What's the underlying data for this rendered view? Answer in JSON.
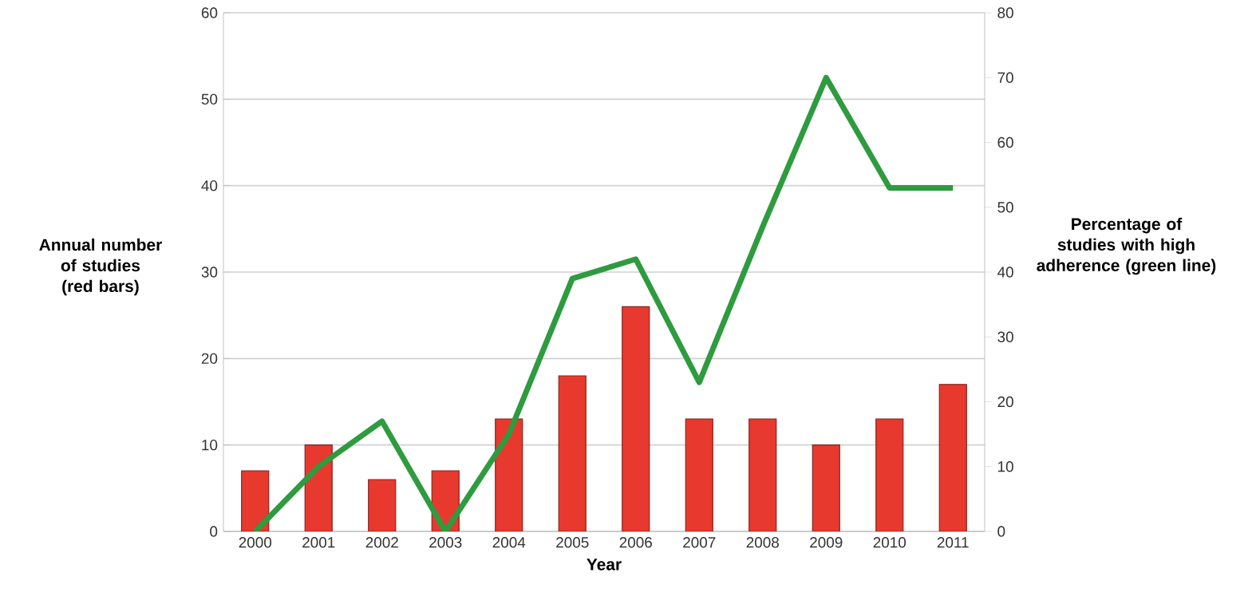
{
  "chart_data": {
    "type": "bar",
    "xlabel": "Year",
    "ylabel": "Annual number of studies (red bars)",
    "y2label": "Percentage of studies with high adherence (green line)",
    "categories": [
      "2000",
      "2001",
      "2002",
      "2003",
      "2004",
      "2005",
      "2006",
      "2007",
      "2008",
      "2009",
      "2010",
      "2011"
    ],
    "ylim": [
      0,
      60
    ],
    "yticks": [
      0,
      10,
      20,
      30,
      40,
      50,
      60
    ],
    "y2lim": [
      0,
      80
    ],
    "y2ticks": [
      0,
      10,
      20,
      30,
      40,
      50,
      60,
      70,
      80
    ],
    "grid": "y",
    "series": [
      {
        "color": "#e8392f",
        "values": [
          7,
          10,
          6,
          7,
          13,
          18,
          26,
          13,
          13,
          10,
          13,
          17
        ]
      },
      {
        "type": "line",
        "axis": "y2",
        "color": "#2e9b3f",
        "values": [
          0,
          10,
          17,
          0,
          15,
          39,
          42,
          23,
          47,
          70,
          53,
          53
        ]
      }
    ]
  }
}
